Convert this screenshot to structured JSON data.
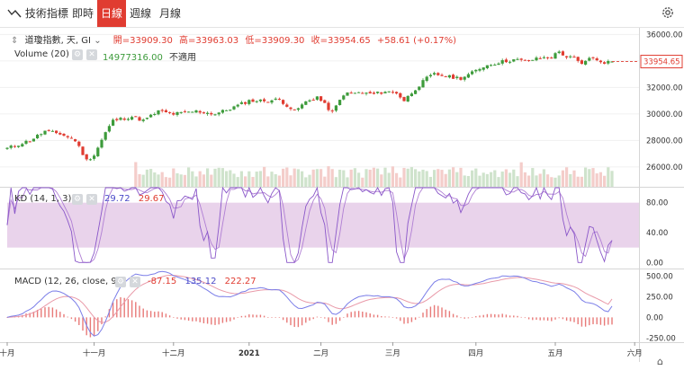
{
  "toolbar": {
    "indicators_label": "技術指標",
    "tabs": [
      {
        "label": "即時",
        "active": false
      },
      {
        "label": "日線",
        "active": true
      },
      {
        "label": "週線",
        "active": false
      },
      {
        "label": "月線",
        "active": false
      }
    ]
  },
  "legend": {
    "symbol": "道瓊指數, 天, GI",
    "open_label": "開=33909.30",
    "high_label": "高=33963.03",
    "low_label": "低=33909.30",
    "close_label": "收=33954.65",
    "change_label": "+58.61 (+0.17%)",
    "volume_label": "Volume (20)",
    "volume_value": "14977316.00",
    "volume_na": "不適用",
    "kd_label": "KD (14, 1, 3)",
    "kd_k": "29.72",
    "kd_d": "29.67",
    "macd_label": "MACD (12, 26, close, 9)",
    "macd_hist": "-87.15",
    "macd_line": "135.12",
    "macd_signal": "222.27"
  },
  "colors": {
    "up": "#3d9b3b",
    "down": "#e03c31",
    "volume_up": "#cfe3cc",
    "volume_down": "#f4cdca",
    "kd_band": "#e5cbe8",
    "kd_line": "#8a57c9",
    "macd_line": "#7b7ee8",
    "macd_signal": "#e99aa9",
    "macd_hist": "#e87a78",
    "accent": "#e03c31"
  },
  "chart_data": [
    {
      "type": "candlestick",
      "name": "price",
      "ylim": [
        24500,
        36500
      ],
      "y_ticks": [
        "36000.00",
        "34000.00",
        "32000.00",
        "30000.00",
        "28000.00",
        "26000.00"
      ],
      "y_tick_values": [
        36000,
        34000,
        32000,
        30000,
        28000,
        26000
      ],
      "last_price_label": "33954.65",
      "last_price": 33954.65,
      "x_labels": [
        "十月",
        "十一月",
        "十二月",
        "2021",
        "二月",
        "三月",
        "四月",
        "五月",
        "六月"
      ],
      "x_label_positions": [
        0,
        23,
        44,
        64,
        83,
        102,
        124,
        145,
        166
      ],
      "n_bars": 161,
      "anchors": [
        [
          0,
          27400
        ],
        [
          6,
          28000
        ],
        [
          10,
          28700
        ],
        [
          14,
          28500
        ],
        [
          18,
          28000
        ],
        [
          21,
          26500
        ],
        [
          23,
          26900
        ],
        [
          26,
          28600
        ],
        [
          28,
          29500
        ],
        [
          33,
          29800
        ],
        [
          36,
          29500
        ],
        [
          40,
          30200
        ],
        [
          44,
          30000
        ],
        [
          50,
          30200
        ],
        [
          55,
          30000
        ],
        [
          59,
          30400
        ],
        [
          64,
          31000
        ],
        [
          69,
          31000
        ],
        [
          72,
          31100
        ],
        [
          76,
          30200
        ],
        [
          79,
          30900
        ],
        [
          82,
          31300
        ],
        [
          86,
          30100
        ],
        [
          89,
          31500
        ],
        [
          93,
          31600
        ],
        [
          97,
          31500
        ],
        [
          100,
          31700
        ],
        [
          103,
          31600
        ],
        [
          105,
          31000
        ],
        [
          108,
          31900
        ],
        [
          111,
          32700
        ],
        [
          113,
          33000
        ],
        [
          117,
          32800
        ],
        [
          120,
          32700
        ],
        [
          123,
          33100
        ],
        [
          126,
          33600
        ],
        [
          130,
          33900
        ],
        [
          134,
          34100
        ],
        [
          137,
          34000
        ],
        [
          141,
          34200
        ],
        [
          144,
          34300
        ],
        [
          146,
          34700
        ],
        [
          148,
          34300
        ],
        [
          150,
          34200
        ],
        [
          152,
          33700
        ],
        [
          154,
          34300
        ],
        [
          156,
          34000
        ],
        [
          158,
          33900
        ],
        [
          160,
          33954.65
        ]
      ]
    },
    {
      "type": "bar",
      "name": "volume",
      "note": "volume bars"
    },
    {
      "type": "line",
      "name": "kd",
      "ylim": [
        -8,
        100
      ],
      "y_ticks": [
        "80.00",
        "40.00",
        "0.00"
      ],
      "y_tick_values": [
        80,
        40,
        0
      ],
      "band": [
        20,
        80
      ],
      "last_k": 29.72,
      "last_d": 29.67
    },
    {
      "type": "line",
      "name": "macd",
      "ylim": [
        -300,
        580
      ],
      "y_ticks": [
        "500.00",
        "250.00",
        "0.00",
        "-250.00"
      ],
      "y_tick_values": [
        500,
        250,
        0,
        -250
      ],
      "last_hist": -87.15,
      "last_macd": 135.12,
      "last_signal": 222.27
    }
  ]
}
